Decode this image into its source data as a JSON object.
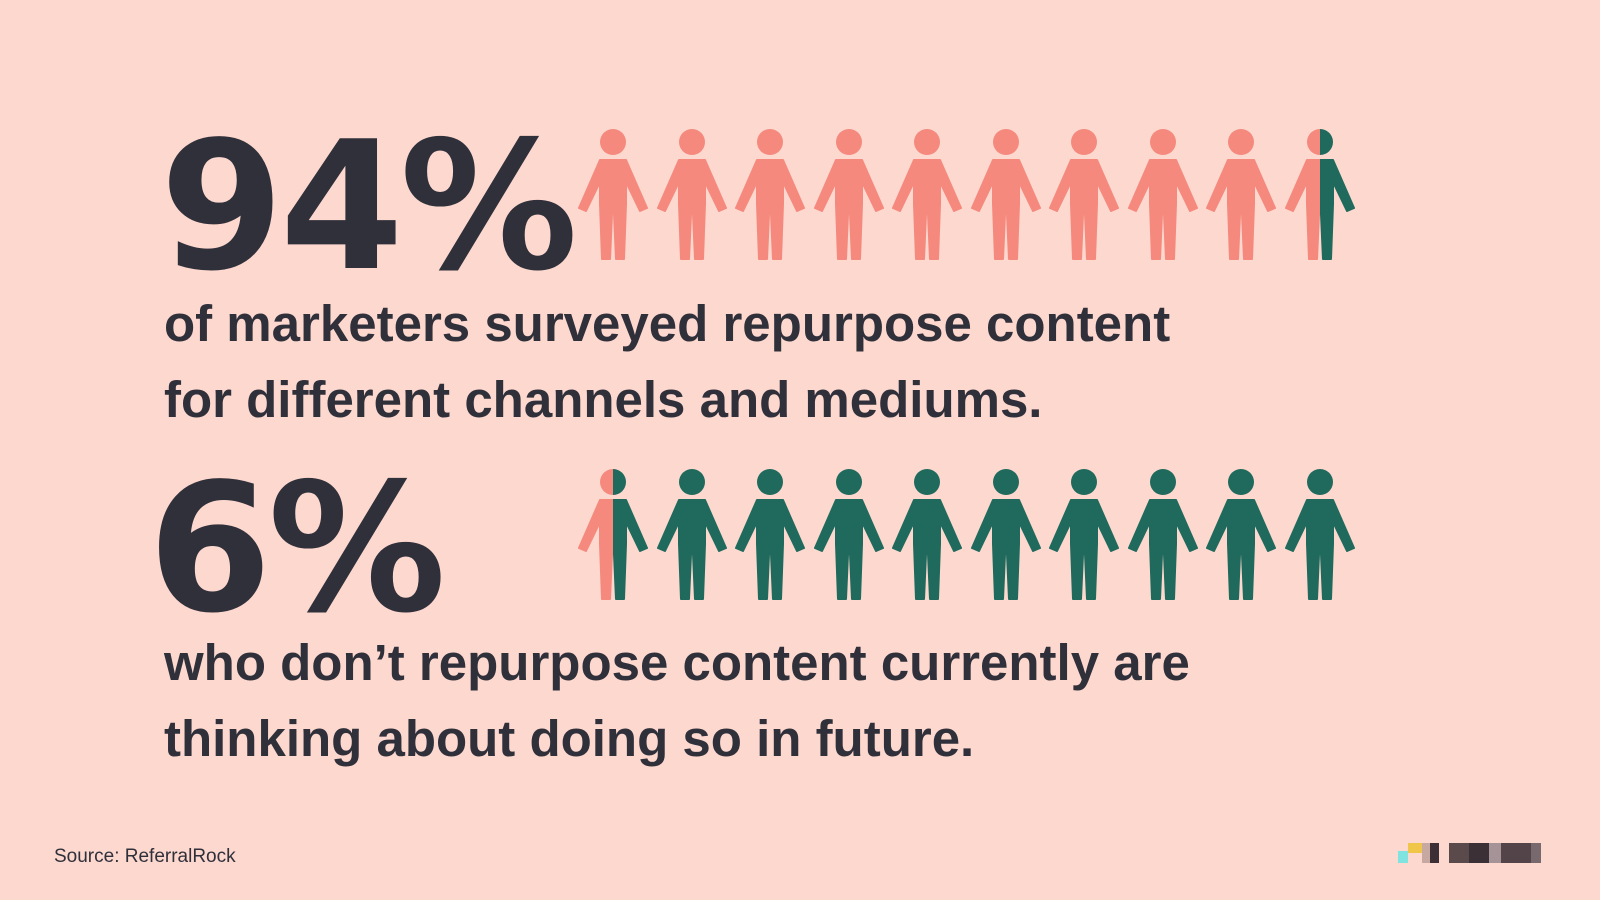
{
  "stat1": {
    "value": "94%",
    "percent": 94,
    "line1": "of marketers surveyed repurpose content",
    "line2": "for different channels and mediums."
  },
  "stat2": {
    "value": "6%",
    "percent": 6,
    "line1": "who don’t repurpose content currently are",
    "line2": "thinking about doing so in future."
  },
  "source": "Source: ReferralRock",
  "icons": {
    "figure": "person-icon"
  },
  "colors": {
    "background": "#fdd8cf",
    "primary": "#f5897d",
    "secondary": "#1f6a5c",
    "text": "#30303b"
  }
}
